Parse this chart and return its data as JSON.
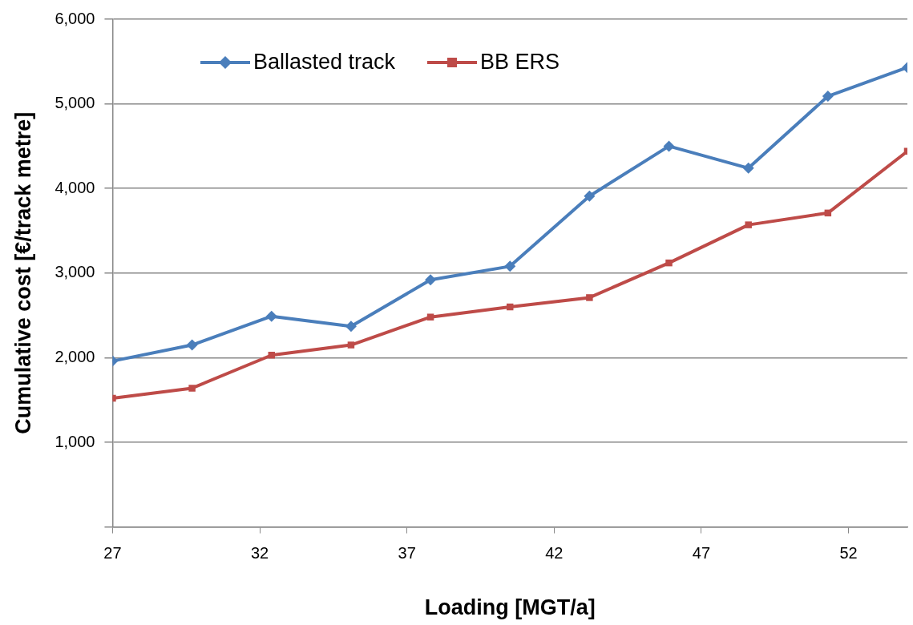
{
  "chart_data": {
    "type": "line",
    "xlabel": "Loading [MGT/a]",
    "ylabel": "Cumulative cost [€/track metre]",
    "x": [
      27,
      29.7,
      32.4,
      35.1,
      37.8,
      40.5,
      43.2,
      45.9,
      48.6,
      51.3,
      54
    ],
    "series": [
      {
        "name": "Ballasted track",
        "color": "#4a7ebb",
        "marker": "diamond",
        "values": [
          1960,
          2150,
          2490,
          2370,
          2920,
          3080,
          3910,
          4500,
          4240,
          5090,
          5430
        ]
      },
      {
        "name": "BB ERS",
        "color": "#be4b48",
        "marker": "square",
        "values": [
          1520,
          1640,
          2030,
          2150,
          2480,
          2600,
          2710,
          3120,
          3570,
          3710,
          4440
        ]
      }
    ],
    "xlim": [
      27,
      54
    ],
    "xticks": [
      27,
      32,
      37,
      42,
      47,
      52
    ],
    "ylim": [
      0,
      6000
    ],
    "yticks": [
      {
        "value": 0,
        "label": null
      },
      {
        "value": 1000,
        "label": "1,000"
      },
      {
        "value": 2000,
        "label": "2,000"
      },
      {
        "value": 3000,
        "label": "3,000"
      },
      {
        "value": 4000,
        "label": "4,000"
      },
      {
        "value": 5000,
        "label": "5,000"
      },
      {
        "value": 6000,
        "label": "6,000"
      }
    ],
    "grid": "y",
    "legend": "top left",
    "line_style": "solid"
  }
}
